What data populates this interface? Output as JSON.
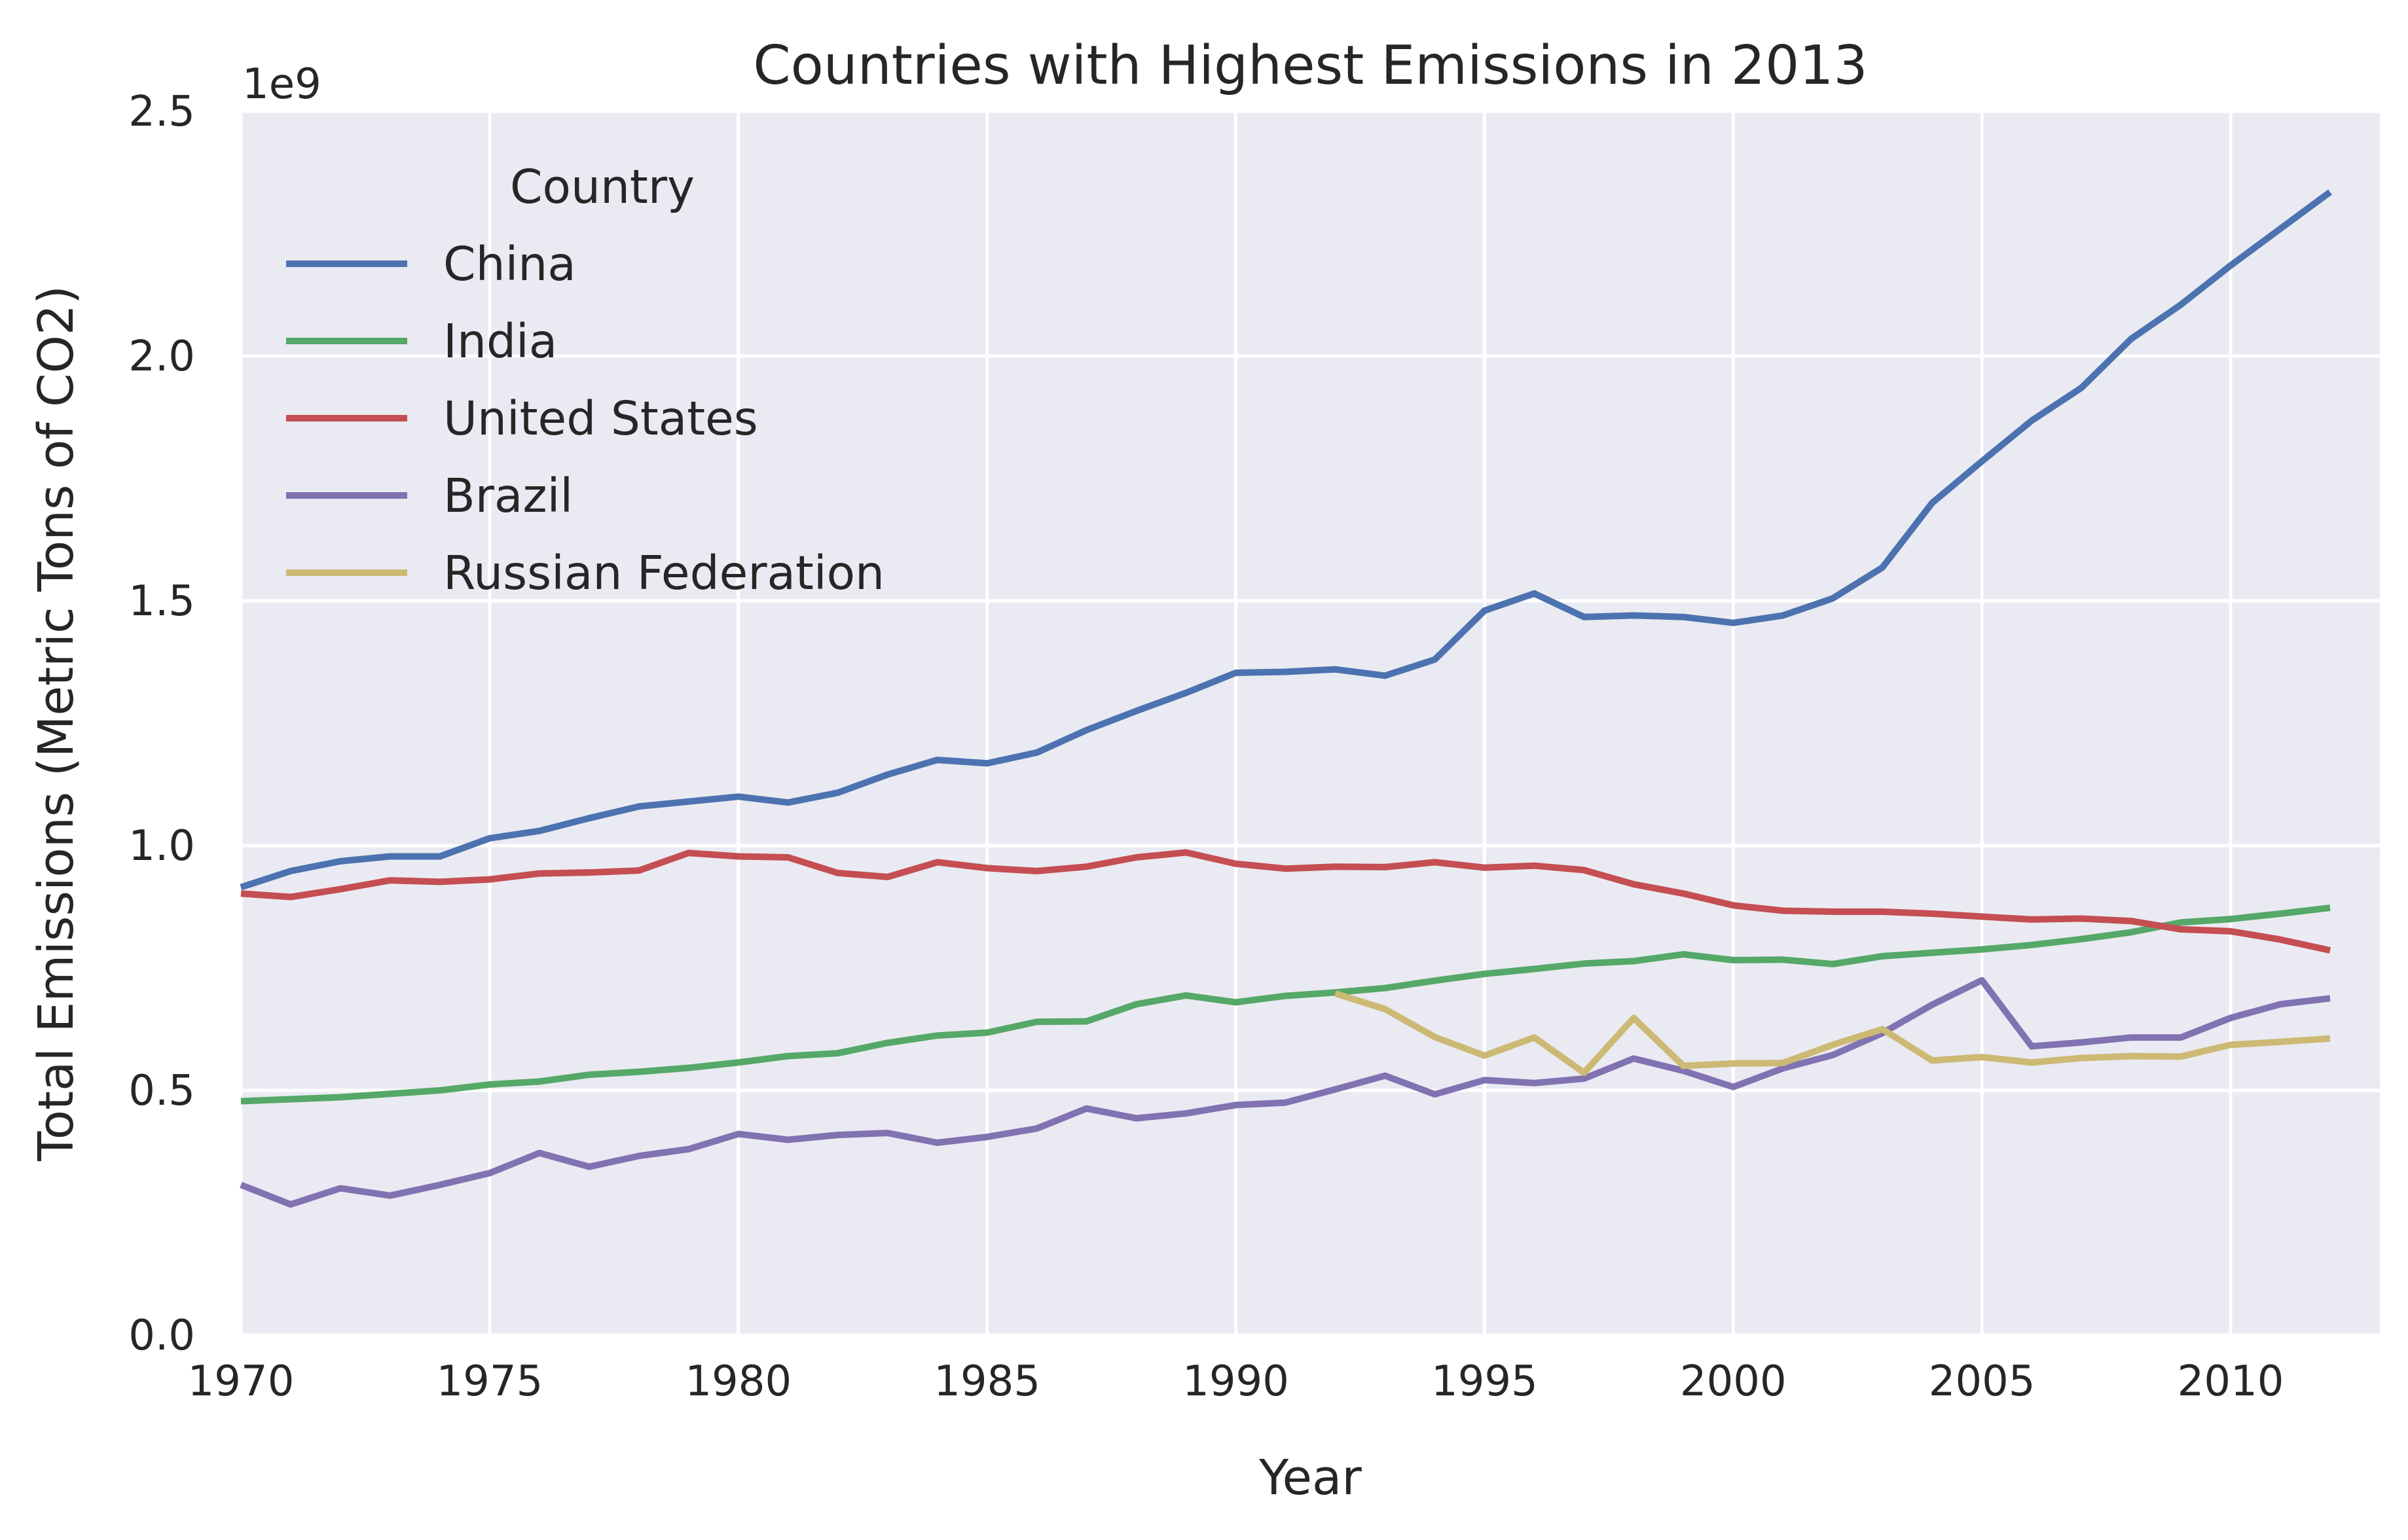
{
  "chart_data": {
    "type": "line",
    "title": "Countries with Highest Emissions in 2013",
    "xlabel": "Year",
    "ylabel": "Total Emissions (Metric Tons of CO2)",
    "y_scale_label": "1e9",
    "xlim": [
      1970,
      2013
    ],
    "ylim": [
      0,
      2500000000
    ],
    "x_ticks": [
      1970,
      1975,
      1980,
      1985,
      1990,
      1995,
      2000,
      2005,
      2010
    ],
    "y_ticks": [
      0,
      500000000,
      1000000000,
      1500000000,
      2000000000,
      2500000000
    ],
    "y_tick_labels": [
      "0.0",
      "0.5",
      "1.0",
      "1.5",
      "2.0",
      "2.5"
    ],
    "grid": true,
    "legend": {
      "title": "Country",
      "placement": "top-left"
    },
    "series": [
      {
        "name": "China",
        "color": "#4C72B0",
        "x": [
          1970,
          1971,
          1972,
          1973,
          1974,
          1975,
          1976,
          1977,
          1978,
          1979,
          1980,
          1981,
          1982,
          1983,
          1984,
          1985,
          1986,
          1987,
          1988,
          1989,
          1990,
          1991,
          1992,
          1993,
          1994,
          1995,
          1996,
          1997,
          1998,
          1999,
          2000,
          2001,
          2002,
          2003,
          2004,
          2005,
          2006,
          2007,
          2008,
          2009,
          2010,
          2011,
          2012
        ],
        "y": [
          915000000,
          948000000,
          968000000,
          978000000,
          978000000,
          1015000000,
          1030000000,
          1056000000,
          1080000000,
          1090000000,
          1100000000,
          1088000000,
          1108000000,
          1145000000,
          1175000000,
          1168000000,
          1190000000,
          1236000000,
          1275000000,
          1312000000,
          1353000000,
          1355000000,
          1360000000,
          1347000000,
          1380000000,
          1480000000,
          1515000000,
          1467000000,
          1470000000,
          1467000000,
          1455000000,
          1470000000,
          1505000000,
          1568000000,
          1700000000,
          1785000000,
          1868000000,
          1935000000,
          2035000000,
          2105000000,
          2185000000,
          2260000000,
          2335000000
        ]
      },
      {
        "name": "India",
        "color": "#55A868",
        "x": [
          1970,
          1971,
          1972,
          1973,
          1974,
          1975,
          1976,
          1977,
          1978,
          1979,
          1980,
          1981,
          1982,
          1983,
          1984,
          1985,
          1986,
          1987,
          1988,
          1989,
          1990,
          1991,
          1992,
          1993,
          1994,
          1995,
          1996,
          1997,
          1998,
          1999,
          2000,
          2001,
          2002,
          2003,
          2004,
          2005,
          2006,
          2007,
          2008,
          2009,
          2010,
          2011,
          2012
        ],
        "y": [
          478000000,
          482000000,
          486000000,
          493000000,
          500000000,
          512000000,
          518000000,
          532000000,
          538000000,
          546000000,
          557000000,
          570000000,
          576000000,
          597000000,
          612000000,
          618000000,
          640000000,
          641000000,
          676000000,
          694000000,
          680000000,
          693000000,
          700000000,
          709000000,
          724000000,
          738000000,
          748000000,
          759000000,
          764000000,
          778000000,
          766000000,
          767000000,
          758000000,
          774000000,
          781000000,
          788000000,
          797000000,
          809000000,
          823000000,
          843000000,
          850000000,
          861000000,
          873000000
        ]
      },
      {
        "name": "United States",
        "color": "#C44E52",
        "x": [
          1970,
          1971,
          1972,
          1973,
          1974,
          1975,
          1976,
          1977,
          1978,
          1979,
          1980,
          1981,
          1982,
          1983,
          1984,
          1985,
          1986,
          1987,
          1988,
          1989,
          1990,
          1991,
          1992,
          1993,
          1994,
          1995,
          1996,
          1997,
          1998,
          1999,
          2000,
          2001,
          2002,
          2003,
          2004,
          2005,
          2006,
          2007,
          2008,
          2009,
          2010,
          2011,
          2012
        ],
        "y": [
          902000000,
          895000000,
          911000000,
          929000000,
          926000000,
          931000000,
          943000000,
          945000000,
          949000000,
          985000000,
          978000000,
          976000000,
          944000000,
          936000000,
          966000000,
          954000000,
          948000000,
          957000000,
          976000000,
          986000000,
          963000000,
          953000000,
          957000000,
          956000000,
          966000000,
          955000000,
          959000000,
          950000000,
          921000000,
          902000000,
          878000000,
          867000000,
          865000000,
          865000000,
          861000000,
          855000000,
          849000000,
          851000000,
          846000000,
          829000000,
          825000000,
          808000000,
          786000000
        ]
      },
      {
        "name": "Brazil",
        "color": "#8172B2",
        "x": [
          1970,
          1971,
          1972,
          1973,
          1974,
          1975,
          1976,
          1977,
          1978,
          1979,
          1980,
          1981,
          1982,
          1983,
          1984,
          1985,
          1986,
          1987,
          1988,
          1989,
          1990,
          1991,
          1992,
          1993,
          1994,
          1995,
          1996,
          1997,
          1998,
          1999,
          2000,
          2001,
          2002,
          2003,
          2004,
          2005,
          2006,
          2007,
          2008,
          2009,
          2010,
          2011,
          2012
        ],
        "y": [
          307000000,
          267000000,
          300000000,
          285000000,
          307000000,
          331000000,
          372000000,
          344000000,
          366000000,
          380000000,
          411000000,
          399000000,
          409000000,
          413000000,
          393000000,
          405000000,
          422000000,
          463000000,
          443000000,
          453000000,
          470000000,
          475000000,
          502000000,
          530000000,
          492000000,
          521000000,
          515000000,
          524000000,
          565000000,
          540000000,
          507000000,
          545000000,
          572000000,
          617000000,
          675000000,
          725000000,
          590000000,
          598000000,
          608000000,
          608000000,
          648000000,
          676000000,
          688000000
        ]
      },
      {
        "name": "Russian Federation",
        "color": "#CCB974",
        "x": [
          1992,
          1993,
          1994,
          1995,
          1996,
          1997,
          1998,
          1999,
          2000,
          2001,
          2002,
          2003,
          2004,
          2005,
          2006,
          2007,
          2008,
          2009,
          2010,
          2011,
          2012
        ],
        "y": [
          698000000,
          666000000,
          609000000,
          571000000,
          608000000,
          536000000,
          648000000,
          550000000,
          555000000,
          556000000,
          593000000,
          625000000,
          561000000,
          568000000,
          557000000,
          566000000,
          570000000,
          569000000,
          593000000,
          599000000,
          606000000
        ]
      }
    ]
  }
}
